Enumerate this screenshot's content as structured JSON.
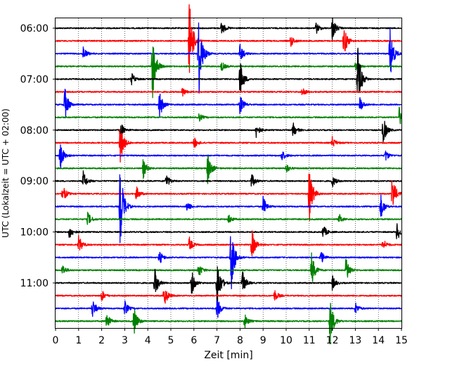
{
  "chart_data": {
    "type": "line",
    "title": "",
    "xlabel": "Zeit  [min]",
    "ylabel": "UTC (Lokalzeit = UTC + 02:00)",
    "xlim": [
      0,
      15
    ],
    "x_ticks": [
      0,
      1,
      2,
      3,
      4,
      5,
      6,
      7,
      8,
      9,
      10,
      11,
      12,
      13,
      14,
      15
    ],
    "y_tick_labels": [
      "06:00",
      "07:00",
      "08:00",
      "09:00",
      "10:00",
      "11:00"
    ],
    "y_tick_rows": [
      0,
      4,
      8,
      12,
      16,
      20
    ],
    "grid": "vertical dotted at each minute",
    "row_colors": [
      "#000000",
      "#ff0000",
      "#0000ff",
      "#008000"
    ],
    "rows": [
      {
        "start": "06:00",
        "events": [
          [
            12.0,
            0.25
          ],
          [
            7.2,
            0.15
          ],
          [
            11.3,
            0.12
          ]
        ]
      },
      {
        "start": "06:15",
        "events": [
          [
            5.8,
            0.9
          ],
          [
            12.5,
            0.35
          ],
          [
            10.2,
            0.12
          ]
        ]
      },
      {
        "start": "06:30",
        "events": [
          [
            6.2,
            1.0
          ],
          [
            14.5,
            0.6
          ],
          [
            8.0,
            0.2
          ],
          [
            1.2,
            0.15
          ]
        ]
      },
      {
        "start": "06:45",
        "events": [
          [
            4.2,
            0.75
          ],
          [
            7.2,
            0.1
          ],
          [
            13.0,
            0.1
          ]
        ]
      },
      {
        "start": "07:00",
        "events": [
          [
            13.1,
            0.7
          ],
          [
            8.0,
            0.4
          ],
          [
            3.3,
            0.12
          ]
        ]
      },
      {
        "start": "07:15",
        "events": [
          [
            5.5,
            0.1
          ],
          [
            10.7,
            0.1
          ]
        ]
      },
      {
        "start": "07:30",
        "events": [
          [
            0.4,
            0.35
          ],
          [
            4.5,
            0.3
          ],
          [
            8.0,
            0.2
          ],
          [
            13.2,
            0.15
          ]
        ]
      },
      {
        "start": "07:45",
        "events": [
          [
            14.9,
            0.2
          ],
          [
            6.2,
            0.1
          ]
        ]
      },
      {
        "start": "08:00",
        "events": [
          [
            14.2,
            0.3
          ],
          [
            2.8,
            0.2
          ],
          [
            8.7,
            0.15
          ],
          [
            10.3,
            0.15
          ]
        ]
      },
      {
        "start": "08:15",
        "events": [
          [
            2.8,
            0.45
          ],
          [
            6.0,
            0.12
          ],
          [
            12.0,
            0.12
          ]
        ]
      },
      {
        "start": "08:30",
        "events": [
          [
            0.2,
            0.3
          ],
          [
            9.8,
            0.12
          ],
          [
            14.3,
            0.12
          ]
        ]
      },
      {
        "start": "08:45",
        "events": [
          [
            6.6,
            0.35
          ],
          [
            3.8,
            0.2
          ],
          [
            10.0,
            0.1
          ]
        ]
      },
      {
        "start": "09:00",
        "events": [
          [
            1.2,
            0.2
          ],
          [
            4.8,
            0.15
          ],
          [
            8.5,
            0.15
          ],
          [
            12.0,
            0.12
          ]
        ]
      },
      {
        "start": "09:15",
        "events": [
          [
            11.0,
            0.6
          ],
          [
            14.6,
            0.4
          ],
          [
            0.3,
            0.2
          ],
          [
            3.5,
            0.15
          ]
        ]
      },
      {
        "start": "09:30",
        "events": [
          [
            2.8,
            0.9
          ],
          [
            9.0,
            0.2
          ],
          [
            14.1,
            0.25
          ],
          [
            5.7,
            0.12
          ]
        ]
      },
      {
        "start": "09:45",
        "events": [
          [
            1.4,
            0.15
          ],
          [
            7.5,
            0.1
          ],
          [
            12.3,
            0.1
          ]
        ]
      },
      {
        "start": "10:00",
        "events": [
          [
            0.6,
            0.15
          ],
          [
            11.6,
            0.15
          ],
          [
            14.8,
            0.2
          ]
        ]
      },
      {
        "start": "10:15",
        "events": [
          [
            8.5,
            0.35
          ],
          [
            1.0,
            0.2
          ],
          [
            5.8,
            0.15
          ],
          [
            14.2,
            0.12
          ]
        ]
      },
      {
        "start": "10:30",
        "events": [
          [
            7.6,
            0.8
          ],
          [
            4.5,
            0.15
          ],
          [
            11.5,
            0.15
          ]
        ]
      },
      {
        "start": "10:45",
        "events": [
          [
            11.1,
            0.35
          ],
          [
            12.6,
            0.3
          ],
          [
            6.2,
            0.15
          ],
          [
            0.3,
            0.12
          ]
        ]
      },
      {
        "start": "11:00",
        "events": [
          [
            7.0,
            0.6
          ],
          [
            4.3,
            0.3
          ],
          [
            5.9,
            0.25
          ],
          [
            8.1,
            0.25
          ],
          [
            12.0,
            0.15
          ]
        ]
      },
      {
        "start": "11:15",
        "events": [
          [
            4.7,
            0.25
          ],
          [
            2.0,
            0.12
          ],
          [
            9.5,
            0.12
          ]
        ]
      },
      {
        "start": "11:30",
        "events": [
          [
            7.0,
            0.25
          ],
          [
            1.6,
            0.2
          ],
          [
            3.0,
            0.15
          ],
          [
            13.0,
            0.12
          ]
        ]
      },
      {
        "start": "11:45",
        "events": [
          [
            11.9,
            0.5
          ],
          [
            3.4,
            0.3
          ],
          [
            2.2,
            0.2
          ],
          [
            8.2,
            0.15
          ]
        ]
      }
    ],
    "trace_amplitude_hours": 0.012
  }
}
